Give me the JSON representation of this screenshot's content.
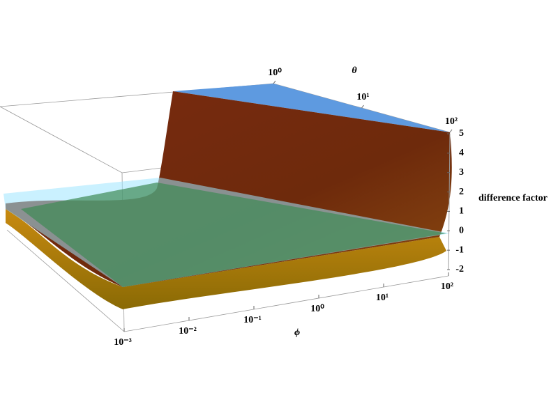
{
  "chart_data": {
    "type": "surface3d",
    "xlabel": "ϕ",
    "ylabel": "θ",
    "zlabel": "difference factor",
    "xscale": "log",
    "yscale": "log",
    "xlim": [
      0.001,
      100
    ],
    "ylim": [
      1,
      100
    ],
    "zlim": [
      -2,
      5
    ],
    "xticks": [
      {
        "value": 0.001,
        "label": "10⁻³"
      },
      {
        "value": 0.01,
        "label": "10⁻²"
      },
      {
        "value": 0.1,
        "label": "10⁻¹"
      },
      {
        "value": 1,
        "label": "10⁰"
      },
      {
        "value": 10,
        "label": "10¹"
      },
      {
        "value": 100,
        "label": "10²"
      }
    ],
    "yticks": [
      {
        "value": 1,
        "label": "10⁰"
      },
      {
        "value": 10,
        "label": "10¹"
      },
      {
        "value": 100,
        "label": "10²"
      }
    ],
    "zticks": [
      -2,
      -1,
      0,
      1,
      2,
      3,
      4,
      5
    ]
  }
}
